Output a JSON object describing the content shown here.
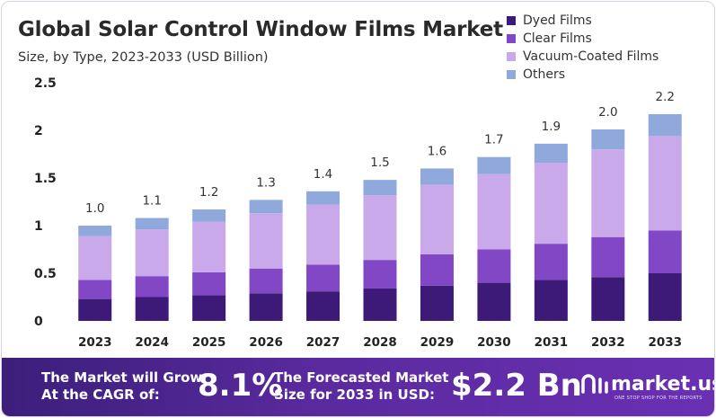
{
  "chart_data": {
    "type": "bar",
    "stacked": true,
    "title": "Global Solar Control Window Films Market",
    "subtitle": "Size, by Type, 2023-2033 (USD Billion)",
    "categories": [
      "2023",
      "2024",
      "2025",
      "2026",
      "2027",
      "2028",
      "2029",
      "2030",
      "2031",
      "2032",
      "2033"
    ],
    "series": [
      {
        "name": "Dyed Films",
        "color": "#3d1a78",
        "values": [
          0.23,
          0.25,
          0.27,
          0.29,
          0.31,
          0.34,
          0.37,
          0.4,
          0.43,
          0.46,
          0.5
        ]
      },
      {
        "name": "Clear Films",
        "color": "#8147c5",
        "values": [
          0.2,
          0.22,
          0.24,
          0.26,
          0.28,
          0.3,
          0.33,
          0.35,
          0.38,
          0.42,
          0.45
        ]
      },
      {
        "name": "Vacuum-Coated Films",
        "color": "#c9a9ea",
        "values": [
          0.46,
          0.49,
          0.53,
          0.58,
          0.63,
          0.68,
          0.73,
          0.79,
          0.85,
          0.92,
          0.99
        ]
      },
      {
        "name": "Others",
        "color": "#8fa9dc",
        "values": [
          0.11,
          0.12,
          0.13,
          0.14,
          0.14,
          0.16,
          0.17,
          0.18,
          0.2,
          0.21,
          0.23
        ]
      }
    ],
    "totals": [
      "1.0",
      "1.1",
      "1.2",
      "1.3",
      "1.4",
      "1.5",
      "1.6",
      "1.7",
      "1.9",
      "2.0",
      "2.2"
    ],
    "yticks": [
      "0",
      "0.5",
      "1",
      "1.5",
      "2",
      "2.5"
    ],
    "ylim": [
      0,
      2.5
    ],
    "xlabel": "",
    "ylabel": "",
    "legend_position": "top-right"
  },
  "footer": {
    "cagr_line1": "The Market will Grow",
    "cagr_line2": "At the CAGR of:",
    "cagr_value": "8.1%",
    "forecast_line1": "The Forecasted Market",
    "forecast_line2": "Size for 2033 in USD:",
    "forecast_value": "$2.2 Bn",
    "brand_name": "market.us",
    "brand_tagline": "ONE STOP SHOP FOR THE REPORTS"
  },
  "colors": {
    "footer_start": "#3b1f7a",
    "footer_end": "#6a30b3"
  }
}
